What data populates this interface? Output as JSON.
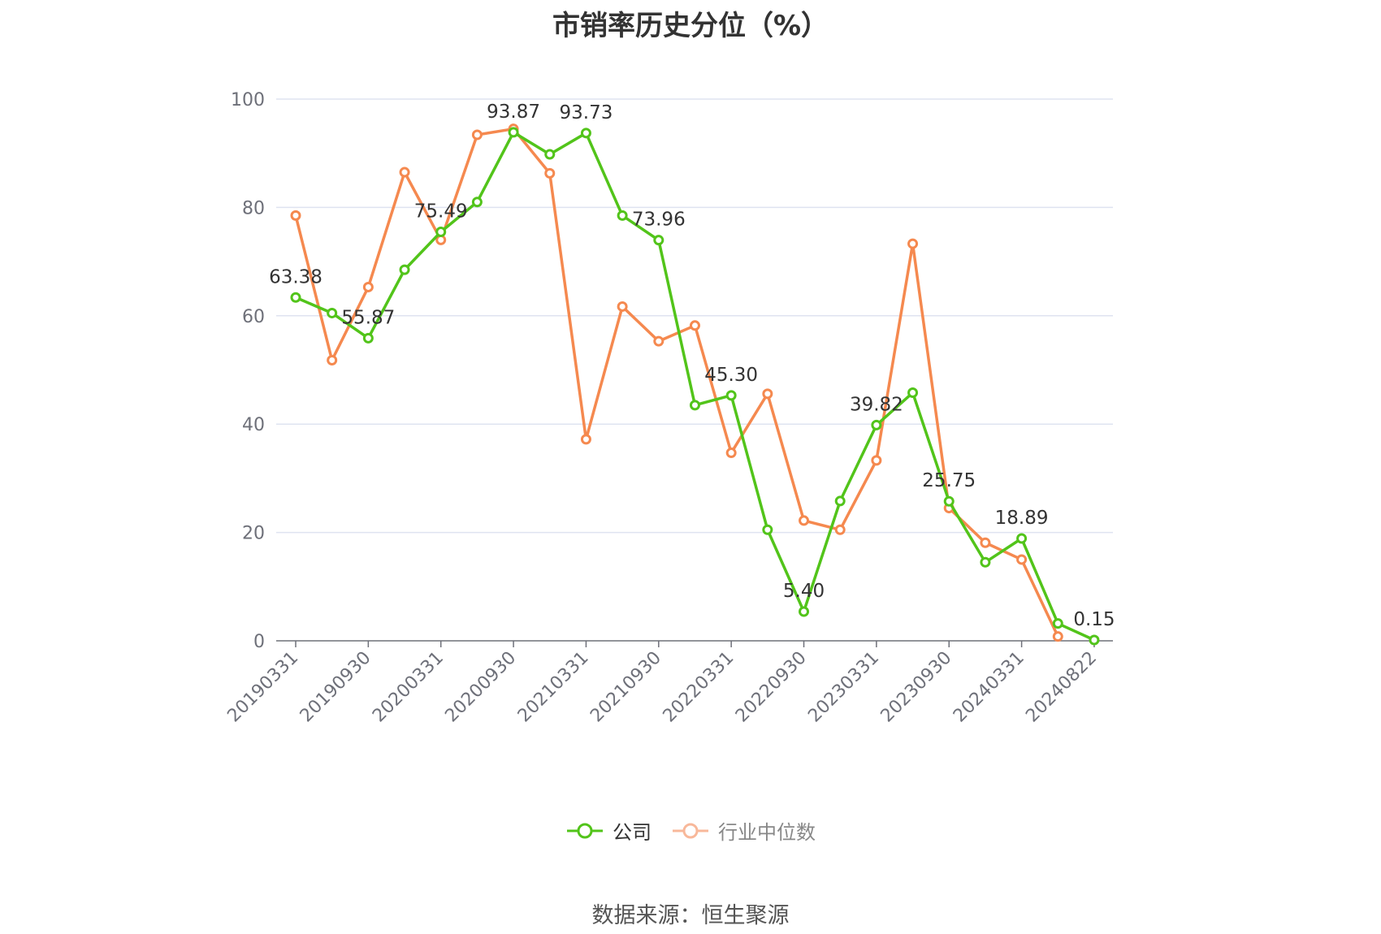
{
  "title": "市销率历史分位（%）",
  "source_note": "数据来源：恒生聚源",
  "legend": {
    "company": "公司",
    "industry": "行业中位数"
  },
  "colors": {
    "company": "#52c41a",
    "industry": "#f5894f",
    "industry_legend": "#f8b89a",
    "grid": "#dfe3f0",
    "axis": "#6e7079"
  },
  "chart_data": {
    "type": "line",
    "title": "市销率历史分位（%）",
    "ylim": [
      0,
      100
    ],
    "yticks": [
      0,
      20,
      40,
      60,
      80,
      100
    ],
    "grid": true,
    "legend_position": "bottom",
    "x": [
      "20190331",
      "20190630",
      "20190930",
      "20191231",
      "20200331",
      "20200630",
      "20200930",
      "20201231",
      "20210331",
      "20210630",
      "20210930",
      "20211231",
      "20220331",
      "20220630",
      "20220930",
      "20221231",
      "20230331",
      "20230630",
      "20230930",
      "20231231",
      "20240331",
      "20240630",
      "20240822"
    ],
    "xtick_labels": [
      "20190331",
      "20190930",
      "20200331",
      "20200930",
      "20210331",
      "20210930",
      "20220331",
      "20220930",
      "20230331",
      "20230930",
      "20240331",
      "20240822"
    ],
    "series": [
      {
        "name": "公司",
        "values": [
          63.38,
          60.5,
          55.87,
          68.5,
          75.49,
          81.0,
          93.87,
          89.8,
          93.73,
          78.5,
          73.96,
          43.5,
          45.3,
          20.5,
          5.4,
          25.8,
          39.82,
          45.8,
          25.75,
          14.5,
          18.89,
          3.2,
          0.15
        ],
        "labels": [
          "63.38",
          "",
          "55.87",
          "",
          "75.49",
          "",
          "93.87",
          "",
          "93.73",
          "",
          "73.96",
          "",
          "45.30",
          "",
          "5.40",
          "",
          "39.82",
          "",
          "25.75",
          "",
          "18.89",
          "",
          "0.15"
        ]
      },
      {
        "name": "行业中位数",
        "values": [
          78.5,
          51.8,
          65.3,
          86.5,
          74.0,
          93.4,
          94.5,
          86.3,
          37.2,
          61.7,
          55.3,
          58.2,
          34.7,
          45.6,
          22.2,
          20.5,
          33.3,
          73.3,
          24.5,
          18.1,
          15.0,
          0.8,
          null
        ]
      }
    ]
  }
}
